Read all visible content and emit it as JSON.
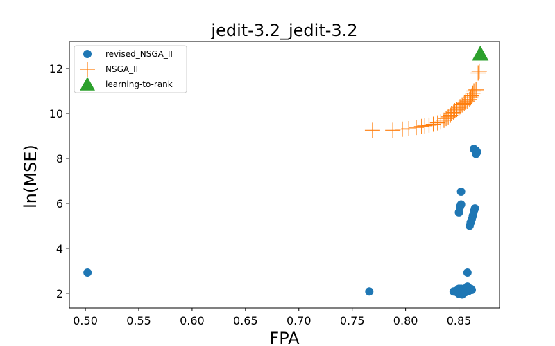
{
  "chart_data": {
    "type": "scatter",
    "title": "jedit-3.2_jedit-3.2",
    "xlabel": "FPA",
    "ylabel": "ln(MSE)",
    "xlim": [
      0.485,
      0.888
    ],
    "ylim": [
      1.35,
      13.2
    ],
    "xticks": [
      "0.50",
      "0.55",
      "0.60",
      "0.65",
      "0.70",
      "0.75",
      "0.80",
      "0.85"
    ],
    "yticks": [
      "2",
      "4",
      "6",
      "8",
      "10",
      "12"
    ],
    "grid": false,
    "legend_position": "top-left",
    "series": [
      {
        "name": "revised_NSGA_II",
        "marker": "circle",
        "color": "#1f77b4",
        "points": [
          [
            0.502,
            2.92
          ],
          [
            0.766,
            2.08
          ],
          [
            0.845,
            2.08
          ],
          [
            0.847,
            2.1
          ],
          [
            0.848,
            2.05
          ],
          [
            0.849,
            2.15
          ],
          [
            0.85,
            2.2
          ],
          [
            0.85,
            1.98
          ],
          [
            0.851,
            2.1
          ],
          [
            0.852,
            2.2
          ],
          [
            0.853,
            2.05
          ],
          [
            0.853,
            1.95
          ],
          [
            0.854,
            2.18
          ],
          [
            0.855,
            2.12
          ],
          [
            0.856,
            2.05
          ],
          [
            0.857,
            2.25
          ],
          [
            0.858,
            2.3
          ],
          [
            0.859,
            2.1
          ],
          [
            0.861,
            2.2
          ],
          [
            0.862,
            2.15
          ],
          [
            0.858,
            2.92
          ],
          [
            0.85,
            5.6
          ],
          [
            0.851,
            5.85
          ],
          [
            0.852,
            5.95
          ],
          [
            0.852,
            6.52
          ],
          [
            0.86,
            5.0
          ],
          [
            0.861,
            5.15
          ],
          [
            0.862,
            5.3
          ],
          [
            0.863,
            5.45
          ],
          [
            0.864,
            5.65
          ],
          [
            0.865,
            5.78
          ],
          [
            0.864,
            8.42
          ],
          [
            0.866,
            8.35
          ],
          [
            0.866,
            8.2
          ],
          [
            0.867,
            8.28
          ]
        ]
      },
      {
        "name": "NSGA_II",
        "marker": "plus",
        "color": "#ff7f0e",
        "points": [
          [
            0.769,
            9.25
          ],
          [
            0.788,
            9.25
          ],
          [
            0.797,
            9.3
          ],
          [
            0.803,
            9.32
          ],
          [
            0.81,
            9.38
          ],
          [
            0.815,
            9.42
          ],
          [
            0.818,
            9.45
          ],
          [
            0.822,
            9.48
          ],
          [
            0.826,
            9.52
          ],
          [
            0.83,
            9.58
          ],
          [
            0.833,
            9.62
          ],
          [
            0.836,
            9.7
          ],
          [
            0.838,
            9.78
          ],
          [
            0.84,
            9.85
          ],
          [
            0.842,
            9.92
          ],
          [
            0.843,
            10.0
          ],
          [
            0.845,
            10.05
          ],
          [
            0.846,
            10.12
          ],
          [
            0.848,
            10.18
          ],
          [
            0.85,
            10.25
          ],
          [
            0.851,
            10.3
          ],
          [
            0.853,
            10.38
          ],
          [
            0.855,
            10.45
          ],
          [
            0.856,
            10.5
          ],
          [
            0.858,
            10.55
          ],
          [
            0.86,
            10.62
          ],
          [
            0.861,
            10.7
          ],
          [
            0.862,
            10.78
          ],
          [
            0.863,
            10.9
          ],
          [
            0.864,
            11.0
          ],
          [
            0.866,
            11.05
          ],
          [
            0.868,
            11.8
          ],
          [
            0.869,
            11.88
          ]
        ]
      },
      {
        "name": "learning-to-rank",
        "marker": "triangle",
        "color": "#2ca02c",
        "points": [
          [
            0.87,
            12.65
          ]
        ]
      }
    ]
  }
}
